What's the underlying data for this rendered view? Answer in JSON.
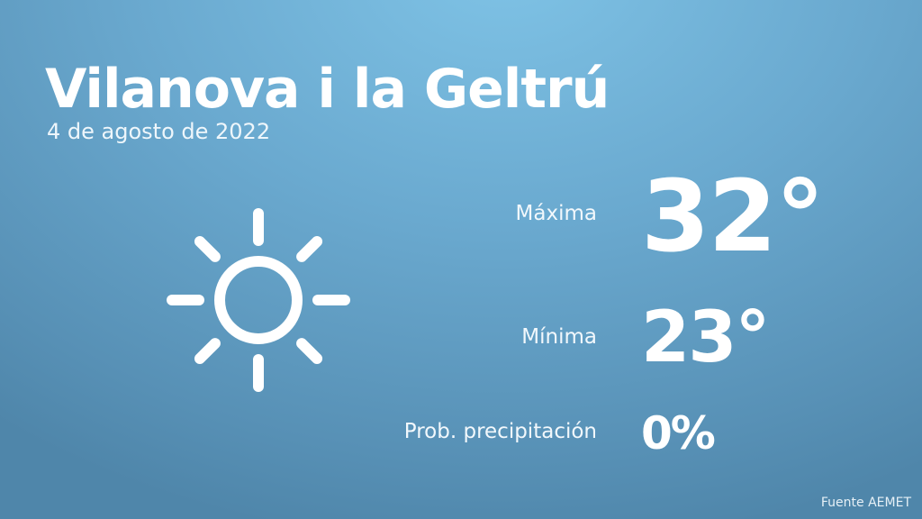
{
  "header": {
    "title": "Vilanova i la Geltrú",
    "date": "4 de agosto de 2022"
  },
  "weather": {
    "icon": "sun-icon",
    "max_label": "Máxima",
    "max_value": "32°",
    "min_label": "Mínima",
    "min_value": "23°",
    "precip_label": "Prob. precipitación",
    "precip_value": "0%"
  },
  "footer": {
    "source": "Fuente AEMET"
  },
  "colors": {
    "background_top": "#7fc3e6",
    "background_bottom": "#4f86aa",
    "text": "#ffffff"
  }
}
